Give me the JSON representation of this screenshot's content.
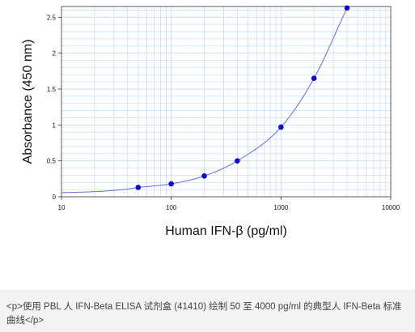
{
  "chart_data": {
    "type": "scatter",
    "xlabel": "Human IFN-β (pg/ml)",
    "ylabel": "Absorbance (450 nm)",
    "xscale": "log",
    "xlim": [
      10,
      10000
    ],
    "ylim": [
      0,
      2.65
    ],
    "x_ticks": [
      10,
      100,
      1000,
      10000
    ],
    "x_tick_labels": [
      "10",
      "100",
      "1000",
      "10000"
    ],
    "y_ticks": [
      0,
      0.5,
      1,
      1.5,
      2,
      2.5
    ],
    "y_tick_labels": [
      "0",
      "0.5",
      "1",
      "1.5",
      "2",
      "2.5"
    ],
    "grid": true,
    "colors": {
      "points": "#0a0acc",
      "curve": "#6f78dd",
      "grid": "#c8e3f5",
      "frame": "#333333"
    },
    "series": [
      {
        "x": [
          50,
          100,
          200,
          400,
          1000,
          2000,
          4000
        ],
        "y": [
          0.13,
          0.18,
          0.29,
          0.5,
          0.97,
          1.65,
          2.63
        ]
      }
    ],
    "fit_curve": {
      "visible": true,
      "kind": "smooth"
    }
  },
  "caption": {
    "text": "<p>使用 PBL 人 IFN-Beta ELISA 试剂盒 (41410) 绘制 50 至 4000 pg/ml 的典型人 IFN-Beta 标准曲线</p>"
  }
}
